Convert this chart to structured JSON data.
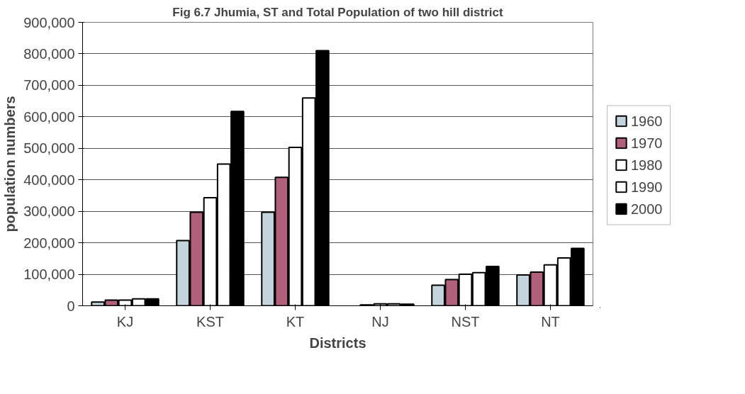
{
  "chart_data": {
    "type": "bar",
    "title": "Fig 6.7 Jhumia, ST and Total Population of two hill district",
    "xlabel": "Districts",
    "ylabel": "population numbers",
    "categories": [
      "KJ",
      "KST",
      "KT",
      "NJ",
      "NST",
      "NT"
    ],
    "series": [
      {
        "name": "1960",
        "color": "#c4d4dc",
        "values": [
          12000,
          207000,
          297000,
          null,
          65000,
          98000
        ]
      },
      {
        "name": "1970",
        "color": "#b0607a",
        "values": [
          18000,
          297000,
          408000,
          3000,
          83000,
          107000
        ]
      },
      {
        "name": "1980",
        "color": "#ffffff",
        "values": [
          18000,
          343000,
          503000,
          6000,
          100000,
          130000
        ]
      },
      {
        "name": "1990",
        "color": "#ffffff",
        "values": [
          22000,
          450000,
          660000,
          6000,
          105000,
          152000
        ]
      },
      {
        "name": "2000",
        "color": "#000000",
        "values": [
          22000,
          617000,
          810000,
          5000,
          125000,
          182000
        ]
      }
    ],
    "ylim": [
      0,
      900000
    ],
    "yticks": [
      {
        "value": 0,
        "label": "0"
      },
      {
        "value": 100000,
        "label": "100,000"
      },
      {
        "value": 200000,
        "label": "200,000"
      },
      {
        "value": 300000,
        "label": "300,000"
      },
      {
        "value": 400000,
        "label": "400,000"
      },
      {
        "value": 500000,
        "label": "500,000"
      },
      {
        "value": 600000,
        "label": "600,000"
      },
      {
        "value": 700000,
        "label": "700,000"
      },
      {
        "value": 800000,
        "label": "800,000"
      },
      {
        "value": 900000,
        "label": "900,000"
      }
    ],
    "grid": "y",
    "legend": "right"
  }
}
